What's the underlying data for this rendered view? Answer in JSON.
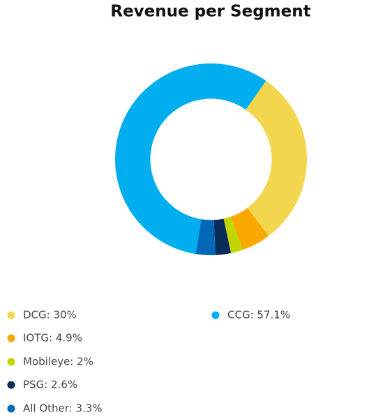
{
  "chart_data": {
    "type": "donut",
    "title": "Revenue per Segment",
    "labels": [
      "DCG: 30%",
      "IOTG: 4.9%",
      "Mobileye: 2%",
      "PSG: 2.6%",
      "All Other: 3.3%",
      "CCG: 57.1%"
    ],
    "values": [
      30,
      4.9,
      2,
      2.6,
      3.3,
      57.1
    ],
    "colors": [
      "#f3d54e",
      "#f9a800",
      "#c2d500",
      "#0a2c5a",
      "#0068b5",
      "#00aeef"
    ]
  }
}
